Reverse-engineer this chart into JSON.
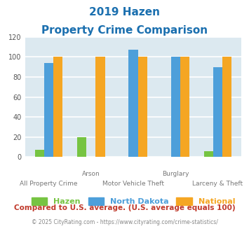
{
  "title_line1": "2019 Hazen",
  "title_line2": "Property Crime Comparison",
  "title_color": "#1a6faf",
  "categories": [
    "All Property Crime",
    "Arson",
    "Motor Vehicle Theft",
    "Burglary",
    "Larceny & Theft"
  ],
  "category_labels_top": [
    "",
    "Arson",
    "",
    "Burglary",
    ""
  ],
  "category_labels_bottom": [
    "All Property Crime",
    "",
    "Motor Vehicle Theft",
    "",
    "Larceny & Theft"
  ],
  "series": {
    "Hazen": [
      7,
      20,
      0,
      0,
      6
    ],
    "North Dakota": [
      94,
      0,
      107,
      100,
      90
    ],
    "National": [
      100,
      100,
      100,
      100,
      100
    ]
  },
  "colors": {
    "Hazen": "#76c442",
    "North Dakota": "#4d9fda",
    "National": "#f5a623"
  },
  "ylim": [
    0,
    120
  ],
  "yticks": [
    0,
    20,
    40,
    60,
    80,
    100,
    120
  ],
  "plot_bg_color": "#dce9f0",
  "grid_color": "#ffffff",
  "footer_text": "Compared to U.S. average. (U.S. average equals 100)",
  "footer_color": "#c0392b",
  "copyright_text": "© 2025 CityRating.com - https://www.cityrating.com/crime-statistics/",
  "copyright_color": "#888888",
  "legend_labels": [
    "Hazen",
    "North Dakota",
    "National"
  ],
  "bar_width": 0.22
}
